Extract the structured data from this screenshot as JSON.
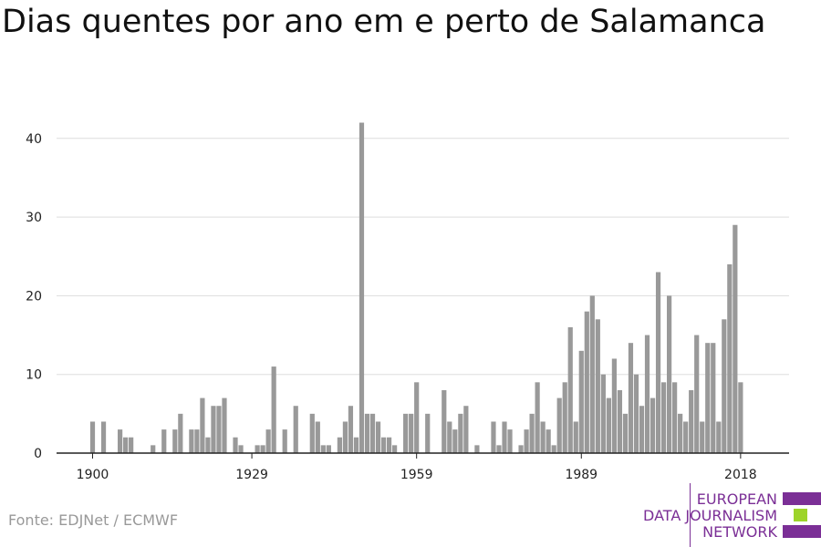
{
  "title": "Dias quentes por ano em e perto de Salamanca",
  "source": "Fonte: EDJNet / ECMWF",
  "logo": {
    "lines": [
      "EUROPEAN",
      "DATA JOURNALISM",
      "NETWORK"
    ],
    "colors": [
      "#7b2f96",
      "#9dd42a",
      "#7b2f96"
    ]
  },
  "chart_data": {
    "type": "bar",
    "x_start": 1900,
    "x_end": 2018,
    "x_ticks": [
      1900,
      1929,
      1959,
      1989,
      2018
    ],
    "x_tick_labels": [
      "1900",
      "1929",
      "1959",
      "1989",
      "2018"
    ],
    "y_ticks": [
      0,
      10,
      20,
      30,
      40
    ],
    "y_tick_labels": [
      "0",
      "10",
      "20",
      "30",
      "40"
    ],
    "ylim": [
      0,
      42
    ],
    "grid": true,
    "bar_color": "#999999",
    "values": [
      4,
      0,
      4,
      0,
      0,
      3,
      2,
      2,
      0,
      0,
      0,
      1,
      0,
      3,
      0,
      3,
      5,
      0,
      3,
      3,
      7,
      2,
      6,
      6,
      7,
      0,
      2,
      1,
      0,
      0,
      1,
      1,
      3,
      11,
      0,
      3,
      0,
      6,
      0,
      0,
      5,
      4,
      1,
      1,
      0,
      2,
      4,
      6,
      2,
      42,
      5,
      5,
      4,
      2,
      2,
      1,
      0,
      5,
      5,
      9,
      0,
      5,
      0,
      0,
      8,
      4,
      3,
      5,
      6,
      0,
      1,
      0,
      0,
      4,
      1,
      4,
      3,
      0,
      1,
      3,
      5,
      9,
      4,
      3,
      1,
      7,
      9,
      16,
      4,
      13,
      18,
      20,
      17,
      10,
      7,
      12,
      8,
      5,
      14,
      10,
      6,
      15,
      7,
      23,
      9,
      20,
      9,
      5,
      4,
      8,
      15,
      4,
      14,
      14,
      4,
      17,
      24,
      29,
      9
    ]
  }
}
